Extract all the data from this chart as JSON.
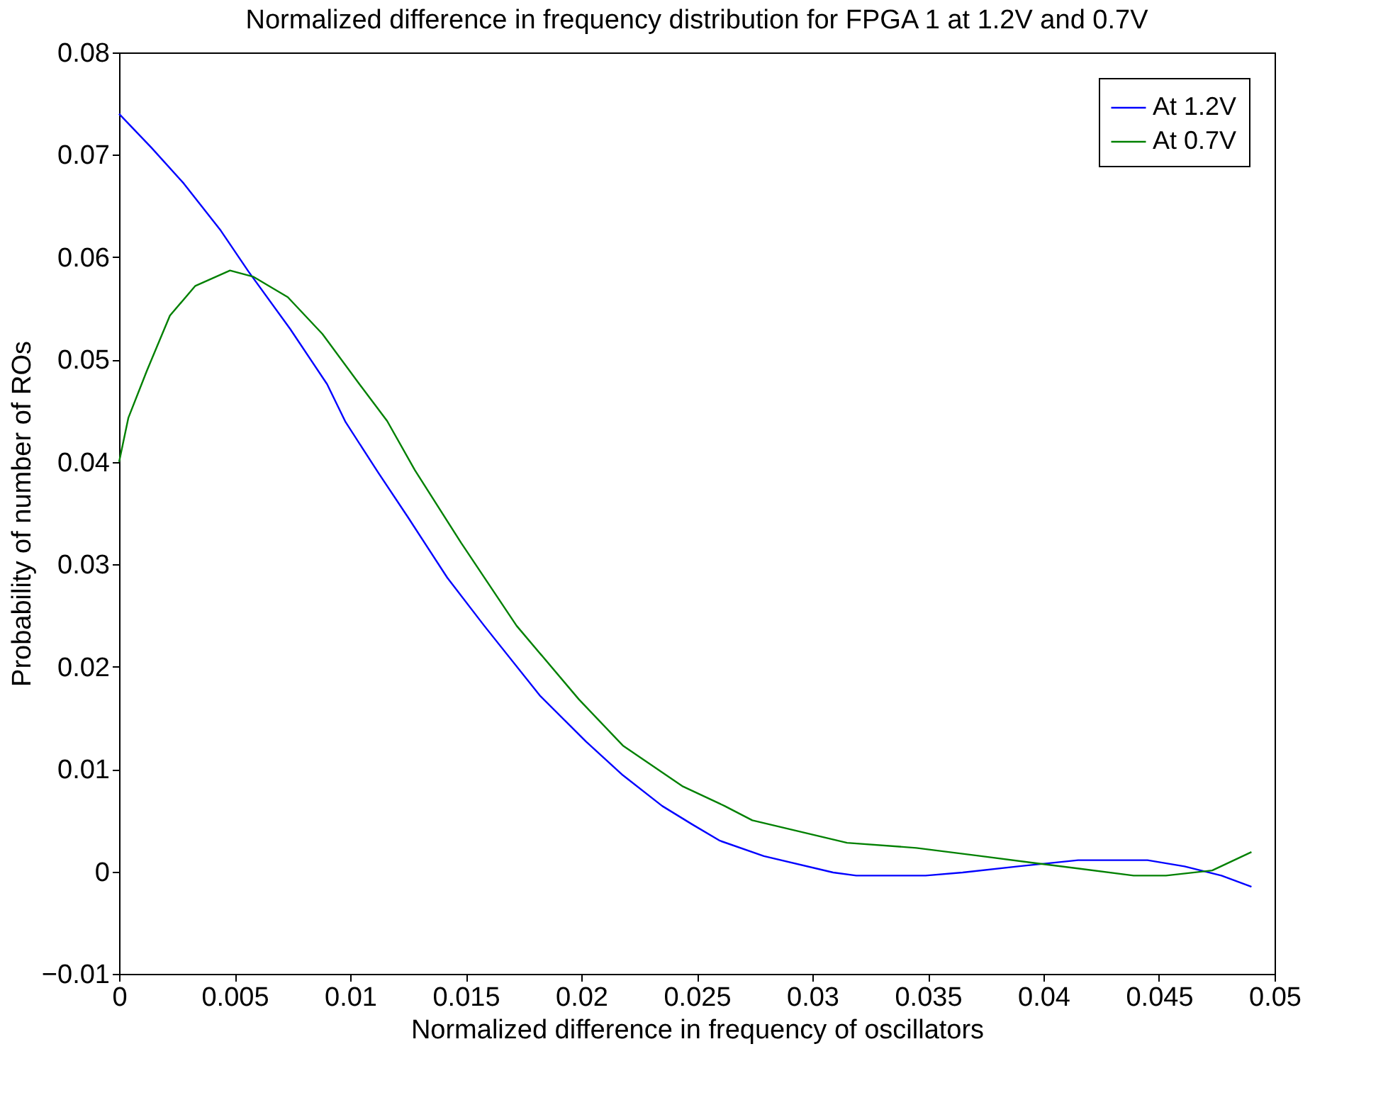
{
  "chart_data": {
    "type": "line",
    "title": "Normalized difference in frequency distribution for FPGA 1 at 1.2V and 0.7V",
    "xlabel": "Normalized difference in frequency of oscillators",
    "ylabel": "Probability of number of ROs",
    "xlim": [
      0,
      0.05
    ],
    "xticks": [
      0,
      0.005,
      0.01,
      0.015,
      0.02,
      0.025,
      0.03,
      0.035,
      0.04,
      0.045,
      0.05
    ],
    "ylim": [
      -0.01,
      0.08
    ],
    "yticks": [
      -0.01,
      0,
      0.01,
      0.02,
      0.03,
      0.04,
      0.05,
      0.06,
      0.07,
      0.08
    ],
    "grid": false,
    "legend": "top right",
    "marker": "none",
    "line_style": "solid",
    "series": [
      {
        "name": "At 1.2V",
        "color": "#0000ff",
        "x": [
          0,
          0.0014,
          0.0028,
          0.0044,
          0.0056,
          0.0074,
          0.009,
          0.0098,
          0.0112,
          0.0125,
          0.0142,
          0.0158,
          0.0182,
          0.0202,
          0.0218,
          0.0235,
          0.0248,
          0.026,
          0.0279,
          0.0309,
          0.0319,
          0.0349,
          0.0365,
          0.0389,
          0.0415,
          0.0445,
          0.0461,
          0.0477,
          0.049
        ],
        "values": [
          0.074,
          0.0707,
          0.0672,
          0.0626,
          0.0586,
          0.053,
          0.0476,
          0.0439,
          0.039,
          0.0346,
          0.0287,
          0.024,
          0.0172,
          0.0127,
          0.0094,
          0.0064,
          0.0046,
          0.003,
          0.0015,
          -0.0001,
          -0.0004,
          -0.0004,
          -0.0001,
          0.0005,
          0.0011,
          0.0011,
          0.0005,
          -0.0004,
          -0.0015
        ]
      },
      {
        "name": "At 0.7V",
        "color": "#008000",
        "x": [
          0,
          0.0004,
          0.0012,
          0.0022,
          0.0033,
          0.0048,
          0.0058,
          0.0073,
          0.0088,
          0.0104,
          0.0116,
          0.0128,
          0.0148,
          0.0172,
          0.0199,
          0.0218,
          0.0244,
          0.0262,
          0.0274,
          0.0315,
          0.0345,
          0.0373,
          0.0397,
          0.0439,
          0.0453,
          0.0473,
          0.049
        ],
        "values": [
          0.04,
          0.0443,
          0.0489,
          0.0543,
          0.0572,
          0.0587,
          0.0581,
          0.0561,
          0.0525,
          0.0476,
          0.044,
          0.0392,
          0.0321,
          0.024,
          0.0168,
          0.0123,
          0.0083,
          0.0064,
          0.005,
          0.0028,
          0.0023,
          0.0015,
          0.0008,
          -0.0004,
          -0.0004,
          0.0001,
          0.0019
        ]
      }
    ]
  }
}
